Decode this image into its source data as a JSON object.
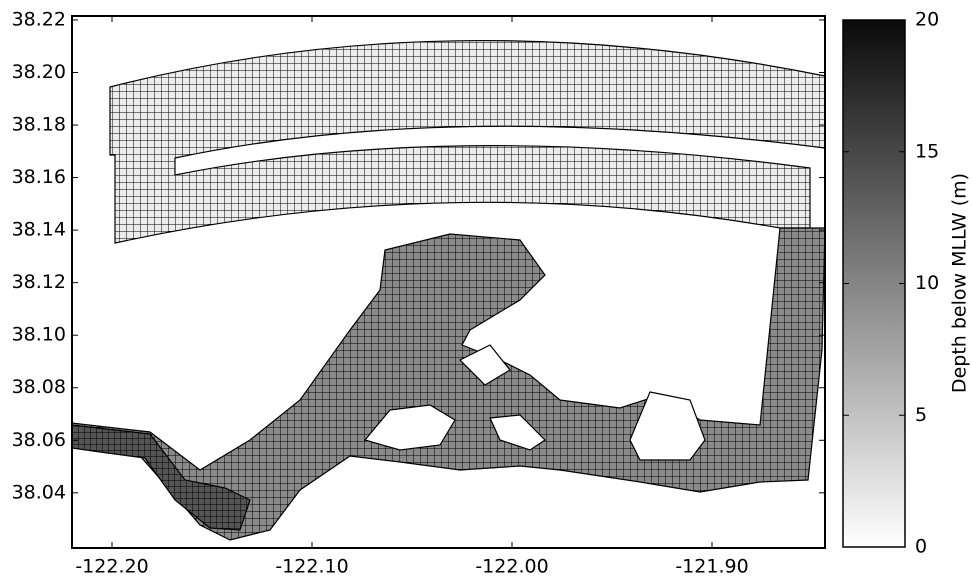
{
  "chart_data": {
    "type": "mesh",
    "xlim": [
      -122.22,
      -121.8435
    ],
    "ylim": [
      38.019,
      38.2215
    ],
    "xticks": [
      {
        "value": -122.2,
        "label": "-122.20"
      },
      {
        "value": -122.1,
        "label": "-122.10"
      },
      {
        "value": -122.0,
        "label": "-122.00"
      },
      {
        "value": -121.9,
        "label": "-121.90"
      }
    ],
    "yticks": [
      38.04,
      38.06,
      38.08,
      {
        "value": 38.1,
        "label": "38.10"
      },
      38.12,
      38.14,
      38.16,
      38.18,
      {
        "value": 38.2,
        "label": "38.20"
      },
      38.22
    ],
    "colorbar": {
      "label": "Depth below MLLW (m)",
      "clim": [
        0,
        20
      ],
      "ticks": [
        0,
        5,
        10,
        15,
        20
      ],
      "colors": [
        "#ffffff",
        "#0a0a0a"
      ]
    }
  }
}
